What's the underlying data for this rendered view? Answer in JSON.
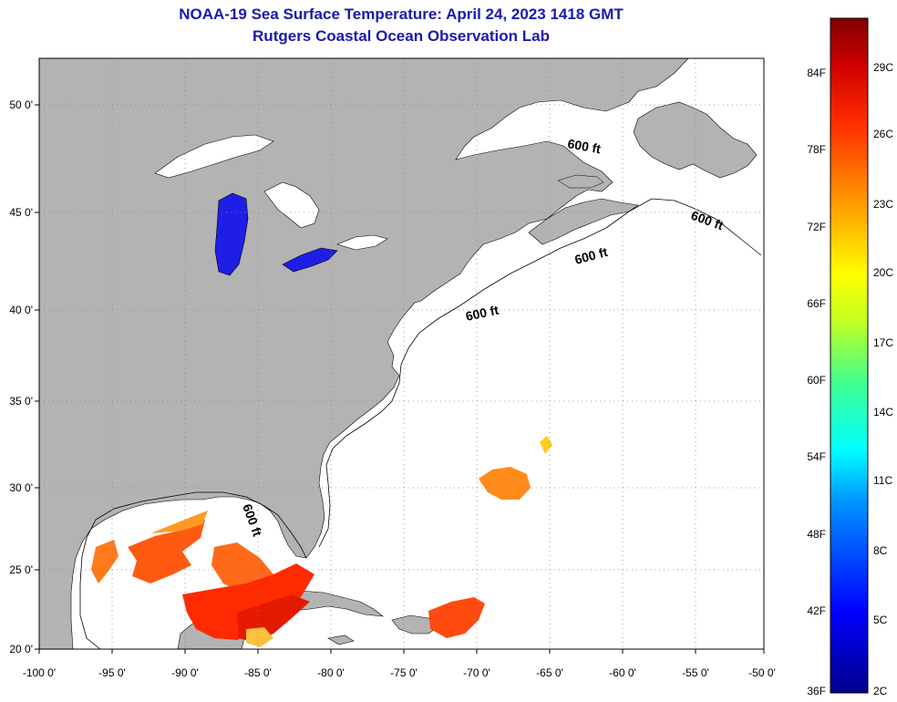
{
  "title": {
    "line1": "NOAA-19 Sea Surface Temperature:  April 24, 2023 1418 GMT",
    "line2": "Rutgers Coastal Ocean Observation Lab"
  },
  "map": {
    "lon_range": [
      -100,
      -50
    ],
    "lat_range": [
      20,
      52.5
    ],
    "lon_ticks": [
      "-100 0'",
      "-95 0'",
      "-90 0'",
      "-85 0'",
      "-80 0'",
      "-75 0'",
      "-70 0'",
      "-65 0'",
      "-60 0'",
      "-55 0'",
      "-50 0'"
    ],
    "lat_ticks": [
      "50 0'",
      "45 0'",
      "40 0'",
      "35 0'",
      "30 0'",
      "25 0'",
      "20 0'"
    ],
    "land_color": "#b3b3b3",
    "water_color": "#ffffff",
    "grid": "dotted",
    "contour_labels": [
      "600 ft",
      "600 ft",
      "600 ft",
      "600 ft",
      "600 ft"
    ]
  },
  "colorbar": {
    "f_labels": [
      "84F",
      "78F",
      "72F",
      "66F",
      "60F",
      "54F",
      "48F",
      "42F",
      "36F"
    ],
    "c_labels": [
      "29C",
      "26C",
      "23C",
      "20C",
      "17C",
      "14C",
      "11C",
      "8C",
      "5C",
      "2C"
    ],
    "colors": [
      "#00008b",
      "#0000ff",
      "#0080ff",
      "#00ffff",
      "#40ff80",
      "#ffff00",
      "#ffa000",
      "#ff4000",
      "#d00000",
      "#800000"
    ]
  }
}
